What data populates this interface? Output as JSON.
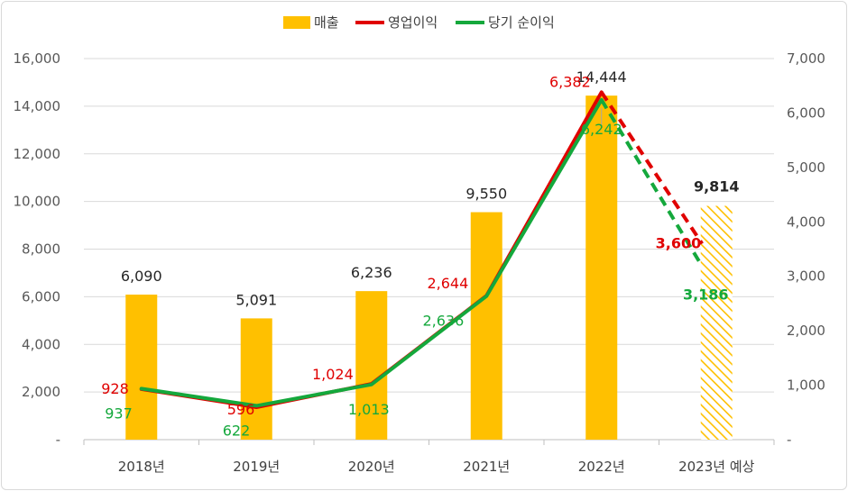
{
  "chart_data": {
    "type": "bar",
    "categories": [
      "2018년",
      "2019년",
      "2020년",
      "2021년",
      "2022년",
      "2023년 예상"
    ],
    "legend": [
      {
        "name": "매출",
        "color": "#FFC000",
        "kind": "bar"
      },
      {
        "name": "영업이익",
        "color": "#E00000",
        "kind": "line"
      },
      {
        "name": "당기 순이익",
        "color": "#14A83C",
        "kind": "line"
      }
    ],
    "y_left": {
      "ticks": [
        "-",
        "2,000",
        "4,000",
        "6,000",
        "8,000",
        "10,000",
        "12,000",
        "14,000",
        "16,000"
      ],
      "ylim": [
        0,
        16000
      ]
    },
    "y_right": {
      "ticks": [
        "-",
        "1,000",
        "2,000",
        "3,000",
        "4,000",
        "5,000",
        "6,000",
        "7,000"
      ],
      "ylim": [
        0,
        7000
      ]
    },
    "grid": true,
    "legend_position": "top",
    "series": [
      {
        "name": "매출",
        "axis": "left",
        "values": [
          6090,
          5091,
          6236,
          9550,
          14444,
          9814
        ],
        "labels": [
          "6,090",
          "5,091",
          "6,236",
          "9,550",
          "14,444",
          "9,814"
        ],
        "forecast_index": 5
      },
      {
        "name": "영업이익",
        "axis": "right",
        "values": [
          928,
          596,
          1024,
          2644,
          6382,
          3600
        ],
        "labels": [
          "928",
          "596",
          "1,024",
          "2,644",
          "6,382",
          "3,600"
        ],
        "forecast_index": 5
      },
      {
        "name": "당기 순이익",
        "axis": "right",
        "values": [
          937,
          622,
          1013,
          2636,
          6242,
          3186
        ],
        "labels": [
          "937",
          "622",
          "1,013",
          "2,636",
          "6,242",
          "3,186"
        ],
        "forecast_index": 5
      }
    ]
  }
}
